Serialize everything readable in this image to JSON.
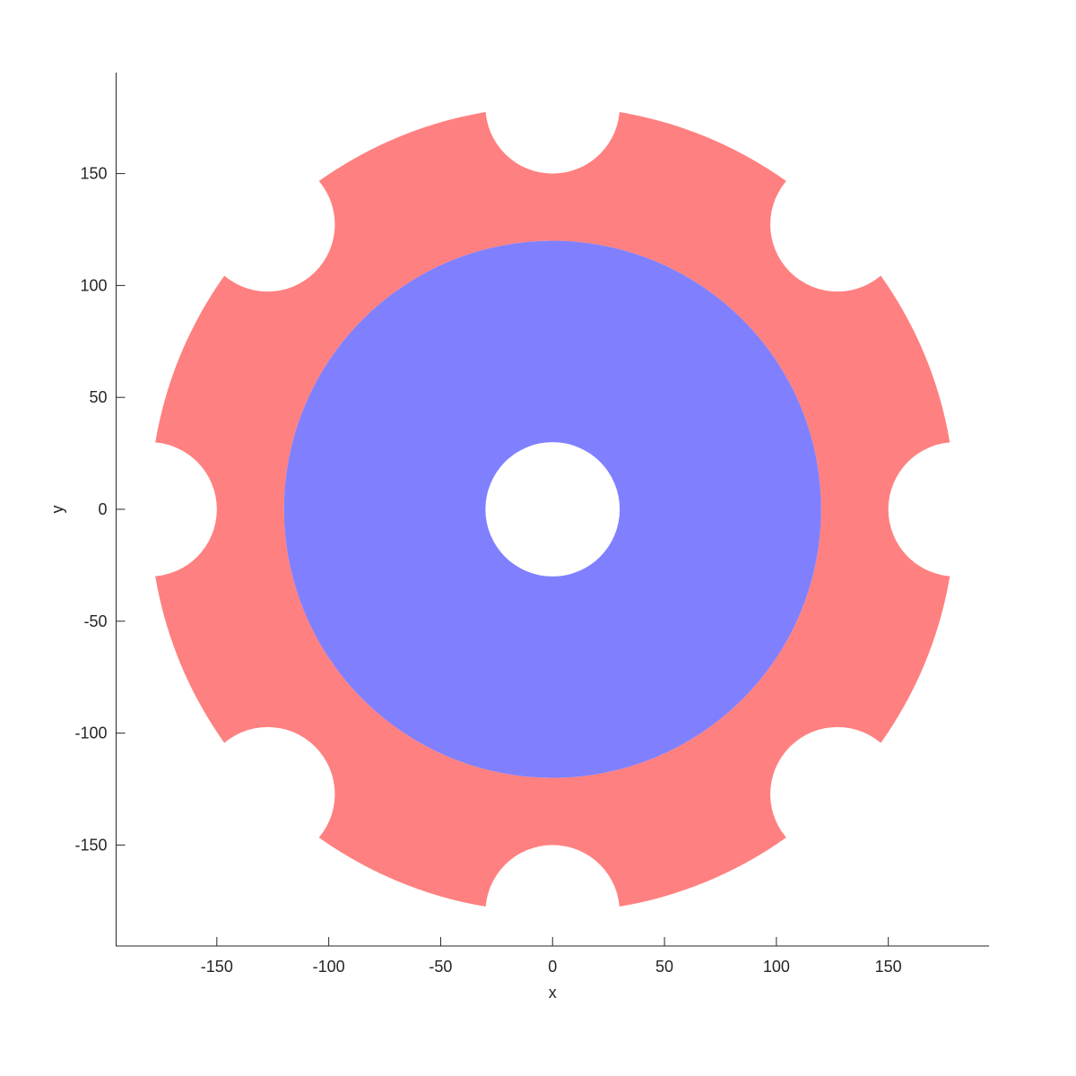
{
  "chart_data": {
    "type": "area",
    "title": "",
    "xlabel": "x",
    "ylabel": "y",
    "xlim": [
      -195,
      195
    ],
    "ylim": [
      -195,
      195
    ],
    "xticks": [
      -150,
      -100,
      -50,
      0,
      50,
      100,
      150
    ],
    "yticks": [
      -150,
      -100,
      -50,
      0,
      50,
      100,
      150
    ],
    "xtick_labels": [
      "-150",
      "-100",
      "-50",
      "0",
      "50",
      "100",
      "150"
    ],
    "ytick_labels": [
      "-150",
      "-100",
      "-50",
      "0",
      "50",
      "100",
      "150"
    ],
    "grid": false,
    "aspect": "equal",
    "series": [
      {
        "shape": "ring-with-notches",
        "color": "#ff8080",
        "center": [
          0,
          0
        ],
        "inner_radius": 120,
        "outer_radius": 180,
        "notches": {
          "count": 8,
          "center_radius": 180,
          "radius": 30,
          "start_angle_deg": 0
        }
      },
      {
        "shape": "annulus",
        "color": "#8080ff",
        "center": [
          0,
          0
        ],
        "inner_radius": 30,
        "outer_radius": 120
      }
    ]
  }
}
